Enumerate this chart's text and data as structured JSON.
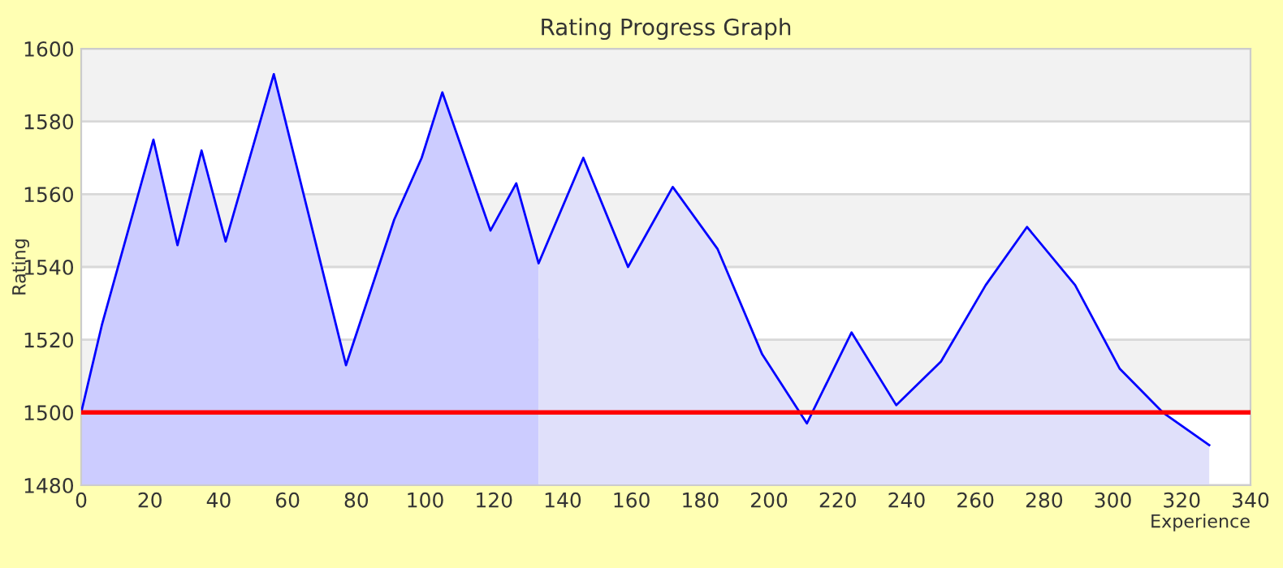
{
  "chart_data": {
    "type": "area",
    "title": "Rating Progress Graph",
    "xlabel": "Experience",
    "ylabel": "Rating",
    "series": [
      {
        "color": "#ccccff",
        "x": [
          0,
          6,
          21,
          28,
          35,
          42,
          56,
          77,
          91,
          99,
          105,
          119,
          126.5,
          133
        ],
        "values": [
          1500,
          1524,
          1575,
          1546,
          1572,
          1547,
          1593,
          1513,
          1553,
          1570,
          1588,
          1550,
          1563,
          1541
        ]
      },
      {
        "color": "#e0e0fa",
        "x": [
          133,
          146,
          159,
          172,
          185,
          198,
          211,
          224,
          237,
          250,
          263,
          275,
          289,
          302,
          314.5,
          328
        ],
        "values": [
          1541,
          1570,
          1540,
          1562,
          1545,
          1516,
          1497,
          1522,
          1502,
          1514,
          1535,
          1551,
          1535,
          1512,
          1500,
          1491
        ]
      },
      {
        "type": "line",
        "color": "#0000ff",
        "x": [
          0,
          6,
          21,
          28,
          35,
          42,
          56,
          77,
          91,
          99,
          105,
          119,
          126.5,
          133,
          146,
          159,
          172,
          185,
          198,
          211,
          224,
          237,
          250,
          263,
          275,
          289,
          302,
          314.5,
          328
        ],
        "values": [
          1500,
          1524,
          1575,
          1546,
          1572,
          1547,
          1593,
          1513,
          1553,
          1570,
          1588,
          1550,
          1563,
          1541,
          1570,
          1540,
          1562,
          1545,
          1516,
          1497,
          1522,
          1502,
          1514,
          1535,
          1551,
          1535,
          1512,
          1500,
          1491
        ]
      }
    ],
    "xlim": [
      0,
      340
    ],
    "xticks": [
      0,
      20,
      40,
      60,
      80,
      100,
      120,
      140,
      160,
      180,
      200,
      220,
      240,
      260,
      280,
      300,
      320,
      340
    ],
    "ylim": [
      1480,
      1600
    ],
    "yticks": [
      1480,
      1500,
      1520,
      1540,
      1560,
      1580,
      1600
    ],
    "bands": [
      {
        "axis": "y",
        "from": 1500,
        "to": 1520,
        "color": "#f2f2f2"
      },
      {
        "axis": "y",
        "from": 1540,
        "to": 1560,
        "color": "#f2f2f2"
      },
      {
        "axis": "y",
        "from": 1580,
        "to": 1600,
        "color": "#f2f2f2"
      }
    ],
    "ref_lines": [
      {
        "axis": "y",
        "value": 1500,
        "color": "#ff0000"
      }
    ],
    "grid": "y",
    "legend": false
  }
}
